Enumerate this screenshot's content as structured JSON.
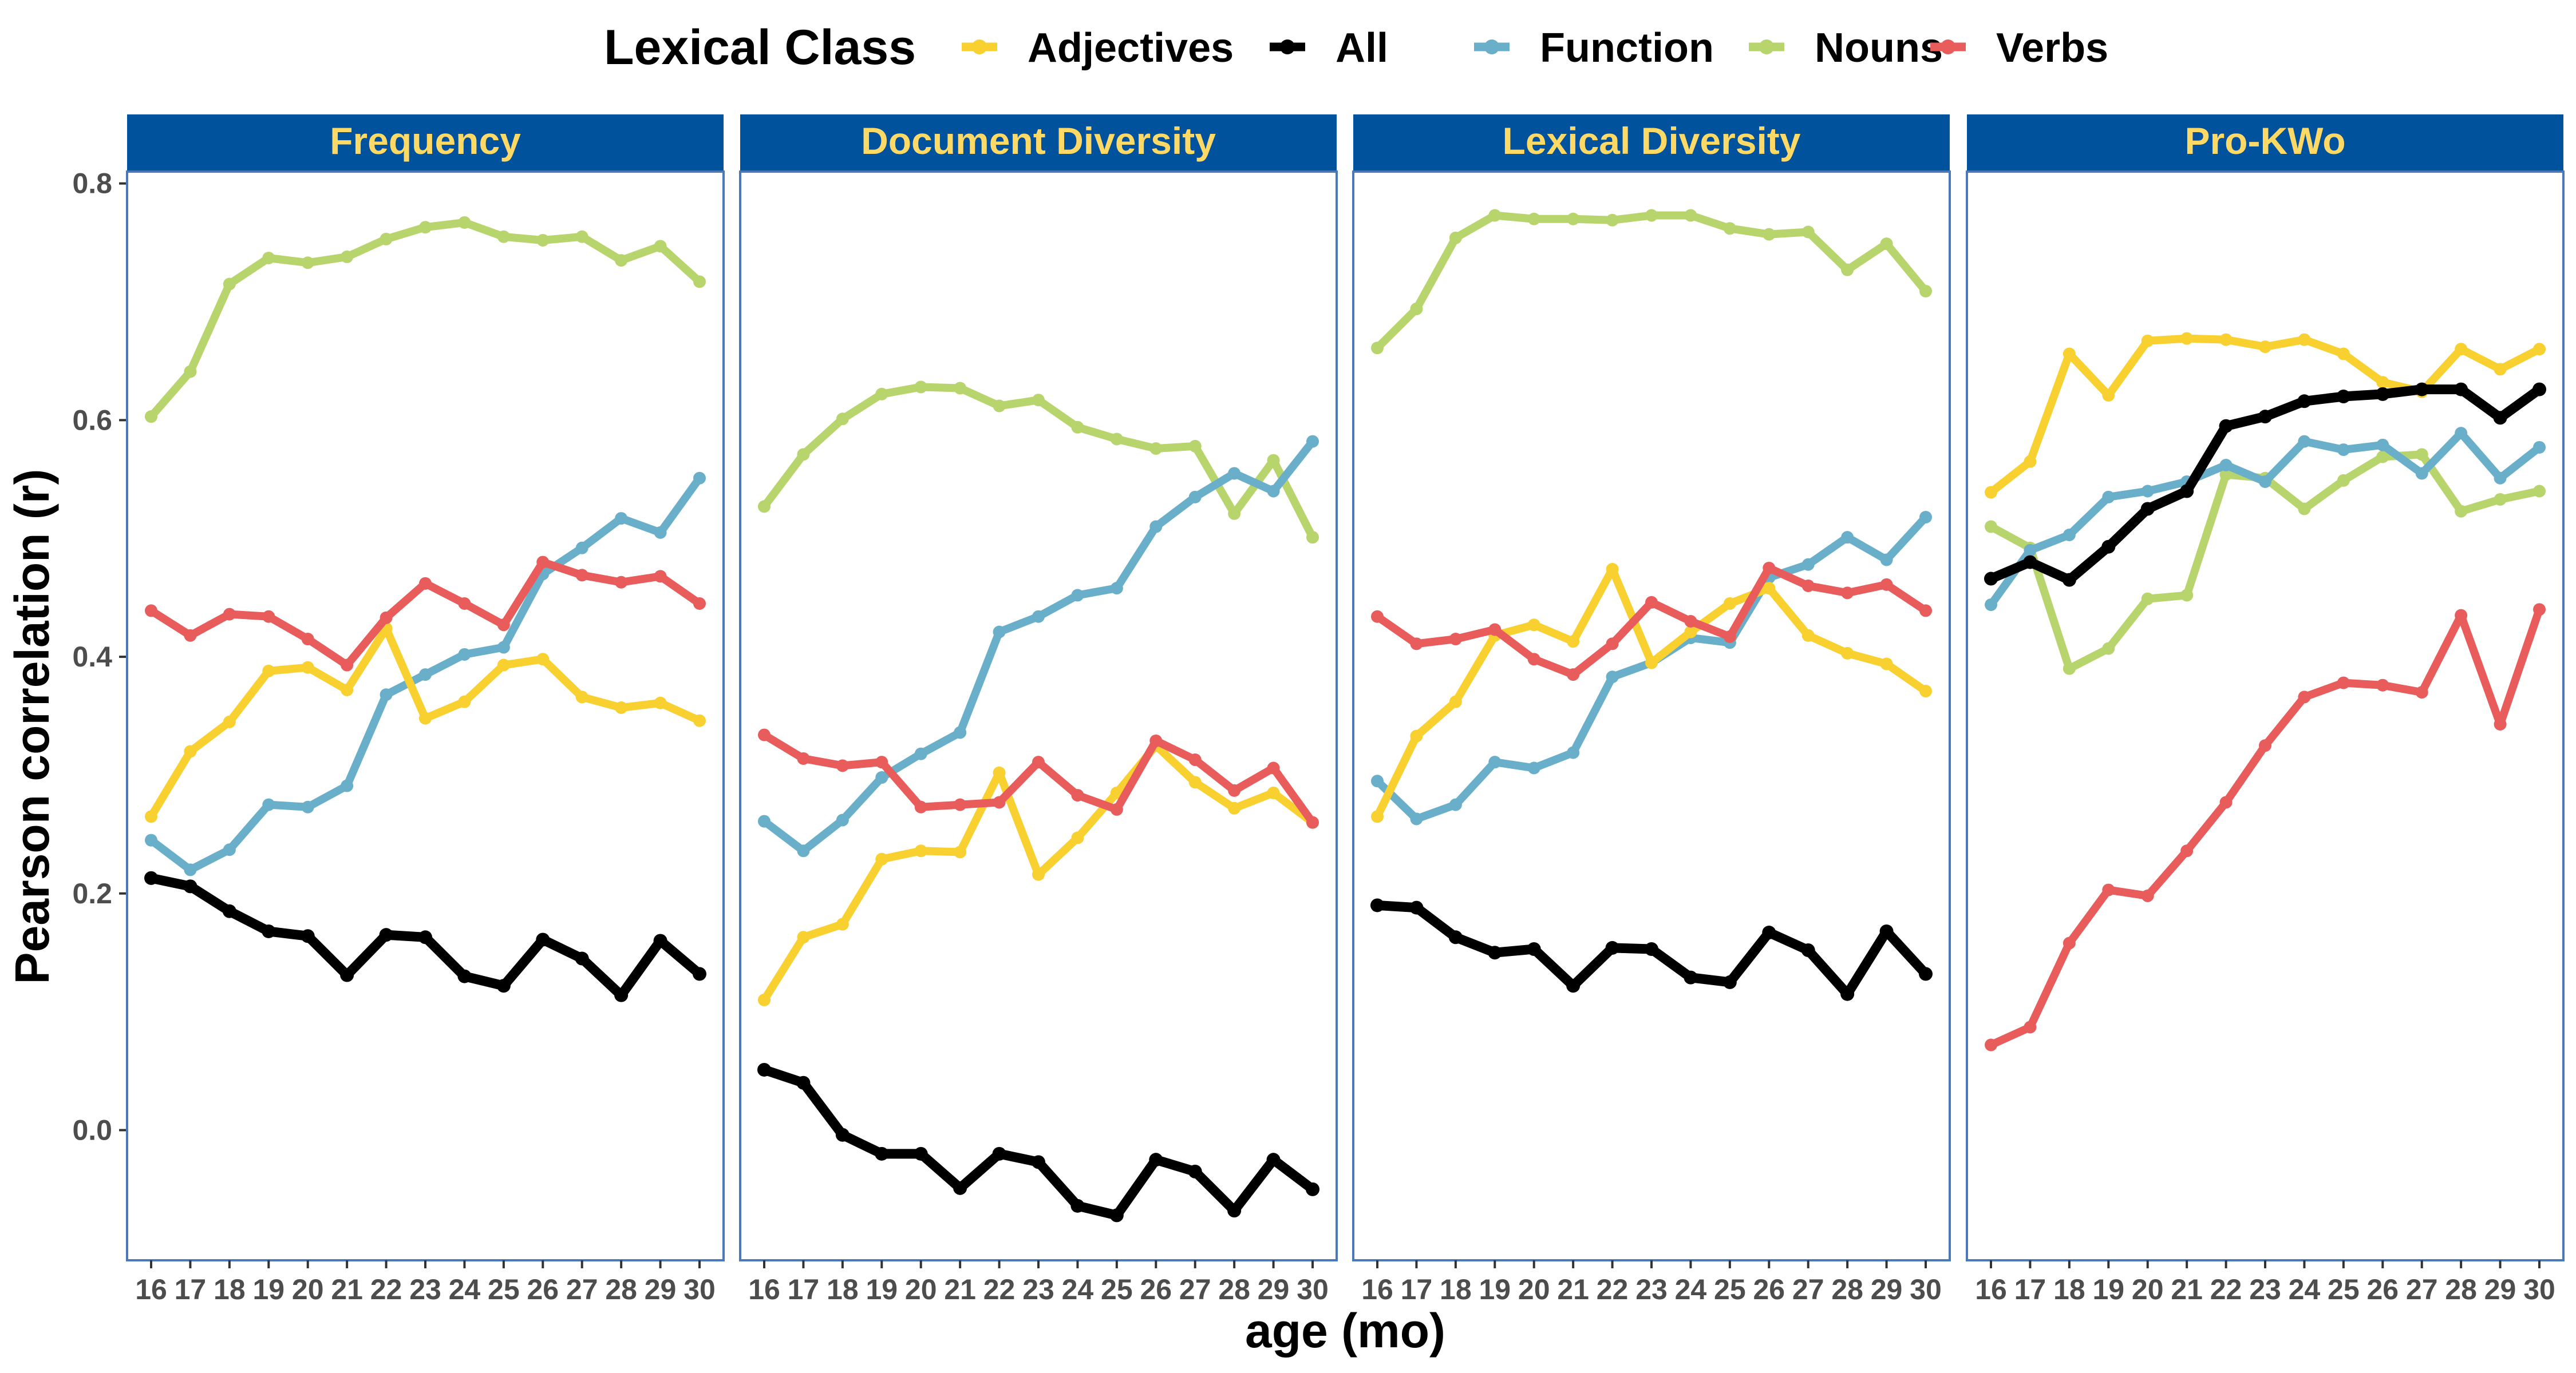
{
  "chart_data": {
    "type": "line",
    "xlabel": "age (mo)",
    "ylabel": "Pearson correlation (r)",
    "ylim": [
      -0.11,
      0.81
    ],
    "y_ticks": [
      0.0,
      0.2,
      0.4,
      0.6,
      0.8
    ],
    "y_tick_labels": [
      "0.0",
      "0.2",
      "0.4",
      "0.6",
      "0.8"
    ],
    "x": [
      "16",
      "17",
      "18",
      "19",
      "20",
      "21",
      "22",
      "23",
      "24",
      "25",
      "26",
      "27",
      "28",
      "29",
      "30"
    ],
    "legend": {
      "title": "Lexical Class",
      "position": "top",
      "entries": [
        "Adjectives",
        "All",
        "Function",
        "Nouns",
        "Verbs"
      ]
    },
    "colors": {
      "Adjectives": "#F8D030",
      "All": "#000000",
      "Function": "#6AAFC9",
      "Nouns": "#B8D46C",
      "Verbs": "#E85C5C",
      "strip_bg": "#00529C",
      "strip_text": "#FFD966",
      "panel_border": "#4A79B8"
    },
    "panels": [
      {
        "title": "Frequency",
        "series": [
          {
            "name": "Adjectives",
            "values": [
              0.265,
              0.32,
              0.345,
              0.388,
              0.391,
              0.372,
              0.424,
              0.348,
              0.362,
              0.393,
              0.398,
              0.366,
              0.357,
              0.361,
              0.346
            ]
          },
          {
            "name": "All",
            "values": [
              0.213,
              0.206,
              0.185,
              0.168,
              0.164,
              0.131,
              0.165,
              0.163,
              0.13,
              0.122,
              0.161,
              0.145,
              0.114,
              0.16,
              0.132
            ]
          },
          {
            "name": "Function",
            "values": [
              0.245,
              0.22,
              0.237,
              0.275,
              0.273,
              0.291,
              0.368,
              0.385,
              0.402,
              0.408,
              0.47,
              0.492,
              0.517,
              0.505,
              0.551
            ]
          },
          {
            "name": "Nouns",
            "values": [
              0.603,
              0.641,
              0.715,
              0.737,
              0.733,
              0.738,
              0.753,
              0.763,
              0.767,
              0.755,
              0.752,
              0.755,
              0.735,
              0.747,
              0.717
            ]
          },
          {
            "name": "Verbs",
            "values": [
              0.439,
              0.418,
              0.436,
              0.434,
              0.415,
              0.393,
              0.433,
              0.462,
              0.445,
              0.427,
              0.48,
              0.469,
              0.463,
              0.468,
              0.445
            ]
          }
        ]
      },
      {
        "title": "Document Diversity",
        "series": [
          {
            "name": "Adjectives",
            "values": [
              0.11,
              0.163,
              0.174,
              0.229,
              0.236,
              0.235,
              0.302,
              0.216,
              0.247,
              0.285,
              0.325,
              0.294,
              0.272,
              0.285,
              0.26
            ]
          },
          {
            "name": "All",
            "values": [
              0.051,
              0.04,
              -0.004,
              -0.02,
              -0.02,
              -0.049,
              -0.02,
              -0.027,
              -0.064,
              -0.072,
              -0.025,
              -0.035,
              -0.068,
              -0.025,
              -0.05
            ]
          },
          {
            "name": "Function",
            "values": [
              0.261,
              0.236,
              0.262,
              0.298,
              0.318,
              0.336,
              0.421,
              0.434,
              0.452,
              0.458,
              0.51,
              0.535,
              0.555,
              0.54,
              0.582
            ]
          },
          {
            "name": "Nouns",
            "values": [
              0.527,
              0.571,
              0.601,
              0.622,
              0.628,
              0.627,
              0.612,
              0.617,
              0.594,
              0.584,
              0.576,
              0.578,
              0.521,
              0.566,
              0.501
            ]
          },
          {
            "name": "Verbs",
            "values": [
              0.334,
              0.314,
              0.308,
              0.311,
              0.273,
              0.275,
              0.277,
              0.311,
              0.283,
              0.271,
              0.329,
              0.313,
              0.287,
              0.306,
              0.26
            ]
          }
        ]
      },
      {
        "title": "Lexical Diversity",
        "series": [
          {
            "name": "Adjectives",
            "values": [
              0.265,
              0.333,
              0.362,
              0.418,
              0.427,
              0.413,
              0.474,
              0.395,
              0.421,
              0.445,
              0.458,
              0.418,
              0.403,
              0.394,
              0.371
            ]
          },
          {
            "name": "All",
            "values": [
              0.19,
              0.188,
              0.163,
              0.15,
              0.153,
              0.122,
              0.154,
              0.153,
              0.129,
              0.125,
              0.167,
              0.152,
              0.115,
              0.168,
              0.132
            ]
          },
          {
            "name": "Function",
            "values": [
              0.295,
              0.263,
              0.275,
              0.311,
              0.306,
              0.319,
              0.383,
              0.395,
              0.416,
              0.412,
              0.467,
              0.478,
              0.501,
              0.482,
              0.518
            ]
          },
          {
            "name": "Nouns",
            "values": [
              0.661,
              0.694,
              0.754,
              0.773,
              0.77,
              0.77,
              0.769,
              0.773,
              0.773,
              0.762,
              0.757,
              0.759,
              0.727,
              0.749,
              0.709
            ]
          },
          {
            "name": "Verbs",
            "values": [
              0.434,
              0.411,
              0.415,
              0.423,
              0.398,
              0.385,
              0.411,
              0.446,
              0.43,
              0.417,
              0.475,
              0.46,
              0.454,
              0.461,
              0.439
            ]
          }
        ]
      },
      {
        "title": "Pro-KWo",
        "series": [
          {
            "name": "Adjectives",
            "values": [
              0.539,
              0.565,
              0.656,
              0.621,
              0.667,
              0.669,
              0.668,
              0.662,
              0.668,
              0.656,
              0.632,
              0.624,
              0.66,
              0.643,
              0.66
            ]
          },
          {
            "name": "All",
            "values": [
              0.466,
              0.48,
              0.465,
              0.493,
              0.525,
              0.54,
              0.595,
              0.603,
              0.616,
              0.62,
              0.622,
              0.626,
              0.626,
              0.602,
              0.626
            ]
          },
          {
            "name": "Function",
            "values": [
              0.444,
              0.49,
              0.503,
              0.535,
              0.54,
              0.548,
              0.562,
              0.548,
              0.582,
              0.575,
              0.579,
              0.555,
              0.589,
              0.551,
              0.577
            ]
          },
          {
            "name": "Nouns",
            "values": [
              0.51,
              0.492,
              0.39,
              0.407,
              0.449,
              0.452,
              0.554,
              0.551,
              0.525,
              0.549,
              0.569,
              0.571,
              0.523,
              0.533,
              0.54
            ]
          },
          {
            "name": "Verbs",
            "values": [
              0.072,
              0.087,
              0.158,
              0.203,
              0.198,
              0.236,
              0.277,
              0.325,
              0.366,
              0.378,
              0.376,
              0.37,
              0.435,
              0.343,
              0.44
            ]
          }
        ]
      }
    ]
  }
}
